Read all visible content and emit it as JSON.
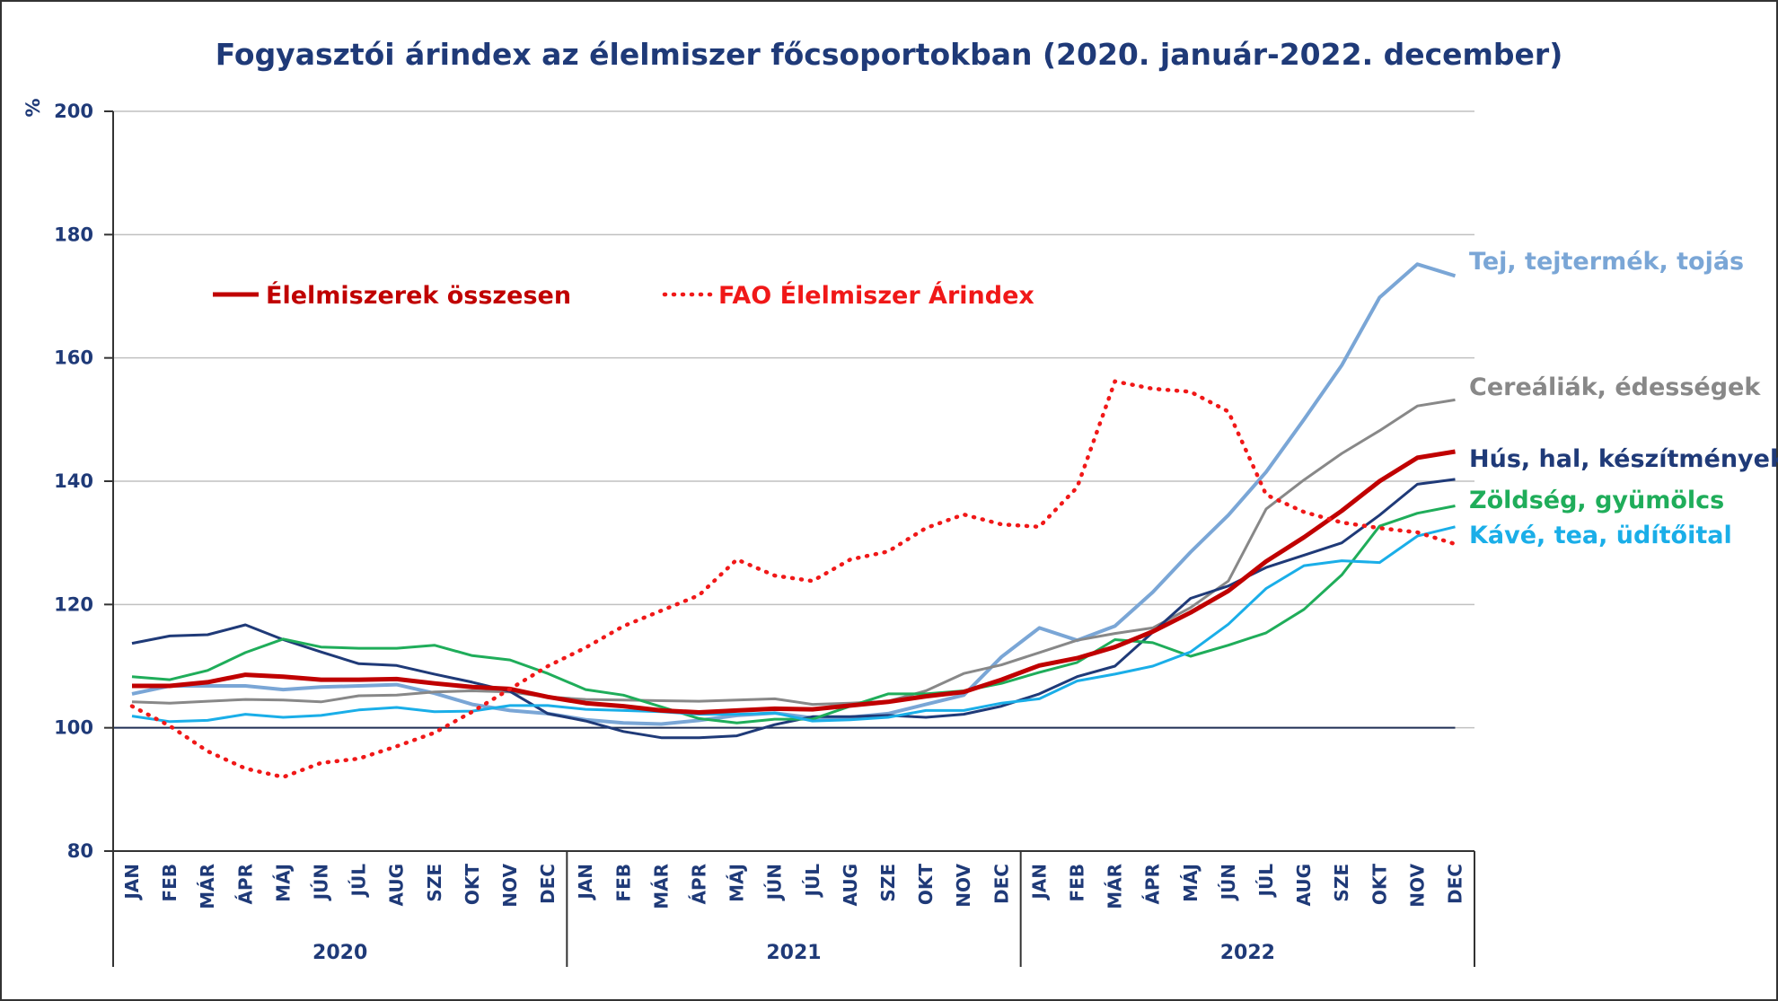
{
  "chart_data": {
    "type": "line",
    "title": "Fogyasztói árindex az élelmiszer főcsoportokban (2020. január-2022. december)",
    "ylabel": "%",
    "ylim": [
      80,
      200
    ],
    "yticks": [
      80,
      100,
      120,
      140,
      160,
      180,
      200
    ],
    "grid": true,
    "legend_position": "top-left",
    "months": [
      "JAN",
      "FEB",
      "MÁR",
      "ÁPR",
      "MÁJ",
      "JÚN",
      "JÚL",
      "AUG",
      "SZE",
      "OKT",
      "NOV",
      "DEC"
    ],
    "years": [
      "2020",
      "2021",
      "2022"
    ],
    "reference_line": 100,
    "legend": [
      {
        "label": "Élelmiszerek összesen",
        "series": "total"
      },
      {
        "label": "FAO Élelmiszer Árindex",
        "series": "fao"
      }
    ],
    "series": [
      {
        "id": "dairy",
        "name": "Tej, tejtermék, tojás",
        "color": "#7aa6d6",
        "width": 4,
        "values": [
          105.5,
          106.8,
          106.8,
          106.8,
          106.2,
          106.6,
          106.8,
          107,
          105.6,
          103.8,
          102.8,
          102.3,
          101.3,
          100.8,
          100.6,
          101.2,
          102,
          102.4,
          101.6,
          101.7,
          102.3,
          103.8,
          105.3,
          111.5,
          116.2,
          114.2,
          116.5,
          122,
          128.5,
          134.5,
          141.5,
          150,
          158.8,
          169.8,
          175.2,
          173.3
        ]
      },
      {
        "id": "cereal",
        "name": "Cereáliák, édességek",
        "color": "#888888",
        "width": 3,
        "values": [
          104.2,
          104,
          104.3,
          104.6,
          104.5,
          104.2,
          105.2,
          105.3,
          105.8,
          106,
          105.8,
          105,
          104.6,
          104.5,
          104.4,
          104.3,
          104.5,
          104.7,
          103.8,
          104,
          104.3,
          106,
          108.8,
          110.2,
          112.2,
          114.2,
          115.3,
          116.2,
          119.5,
          123.8,
          135.5,
          140.2,
          144.5,
          148.2,
          152.2,
          153.2
        ]
      },
      {
        "id": "meat",
        "name": "Hús, hal, készítmények",
        "color": "#1f3a78",
        "width": 3,
        "values": [
          113.7,
          114.9,
          115.1,
          116.7,
          114.3,
          112.3,
          110.4,
          110.1,
          108.7,
          107.4,
          105.9,
          102.3,
          101.1,
          99.4,
          98.4,
          98.4,
          98.7,
          100.5,
          101.8,
          101.8,
          102,
          101.7,
          102.2,
          103.5,
          105.5,
          108.3,
          110,
          115.5,
          121,
          123,
          126,
          128,
          130,
          134.5,
          139.5,
          140.3
        ]
      },
      {
        "id": "veg",
        "name": "Zöldség, gyümölcs",
        "color": "#1fad5a",
        "width": 3,
        "values": [
          108.3,
          107.8,
          109.3,
          112.2,
          114.4,
          113.1,
          112.9,
          112.9,
          113.4,
          111.7,
          111,
          108.8,
          106.2,
          105.3,
          103.4,
          101.5,
          100.8,
          101.4,
          101.4,
          103.5,
          105.5,
          105.5,
          106,
          107.2,
          109,
          110.6,
          114.3,
          113.8,
          111.6,
          113.4,
          115.4,
          119.2,
          124.8,
          132.7,
          134.8,
          136
        ]
      },
      {
        "id": "coffee",
        "name": "Kávé, tea, üdítőital",
        "color": "#1aaee8",
        "width": 3,
        "values": [
          101.9,
          101,
          101.2,
          102.2,
          101.7,
          102,
          102.9,
          103.3,
          102.6,
          102.7,
          103.6,
          103.6,
          103,
          102.8,
          102.6,
          102.2,
          102.2,
          102.4,
          101.1,
          101.3,
          101.7,
          102.8,
          102.8,
          104,
          104.7,
          107.6,
          108.7,
          110,
          112.3,
          116.8,
          122.6,
          126.3,
          127.1,
          126.8,
          131.1,
          132.6
        ]
      },
      {
        "id": "total",
        "name": "Élelmiszerek összesen",
        "color": "#c00000",
        "width": 5,
        "values": [
          106.8,
          106.8,
          107.4,
          108.6,
          108.3,
          107.8,
          107.8,
          107.9,
          107.2,
          106.6,
          106.3,
          105,
          104,
          103.5,
          102.8,
          102.5,
          102.8,
          103.1,
          103,
          103.6,
          104.2,
          105.1,
          105.8,
          107.8,
          110.1,
          111.3,
          113.1,
          115.6,
          118.7,
          122.2,
          127,
          130.9,
          135.2,
          140,
          143.8,
          144.8
        ]
      },
      {
        "id": "fao",
        "name": "FAO Élelmiszer Árindex",
        "color": "#f01818",
        "width": 4,
        "dash": "dotted",
        "values": [
          103.5,
          100.3,
          96.2,
          93.4,
          92,
          94.3,
          95,
          97,
          99.2,
          102.6,
          106.3,
          110,
          113,
          116.5,
          119,
          121.5,
          127.3,
          124.7,
          123.8,
          127.3,
          128.6,
          132.4,
          134.6,
          133,
          132.6,
          139,
          156.2,
          155,
          154.5,
          151.3,
          137.8,
          135,
          133.3,
          132.4,
          131.7,
          129.8
        ]
      }
    ]
  }
}
